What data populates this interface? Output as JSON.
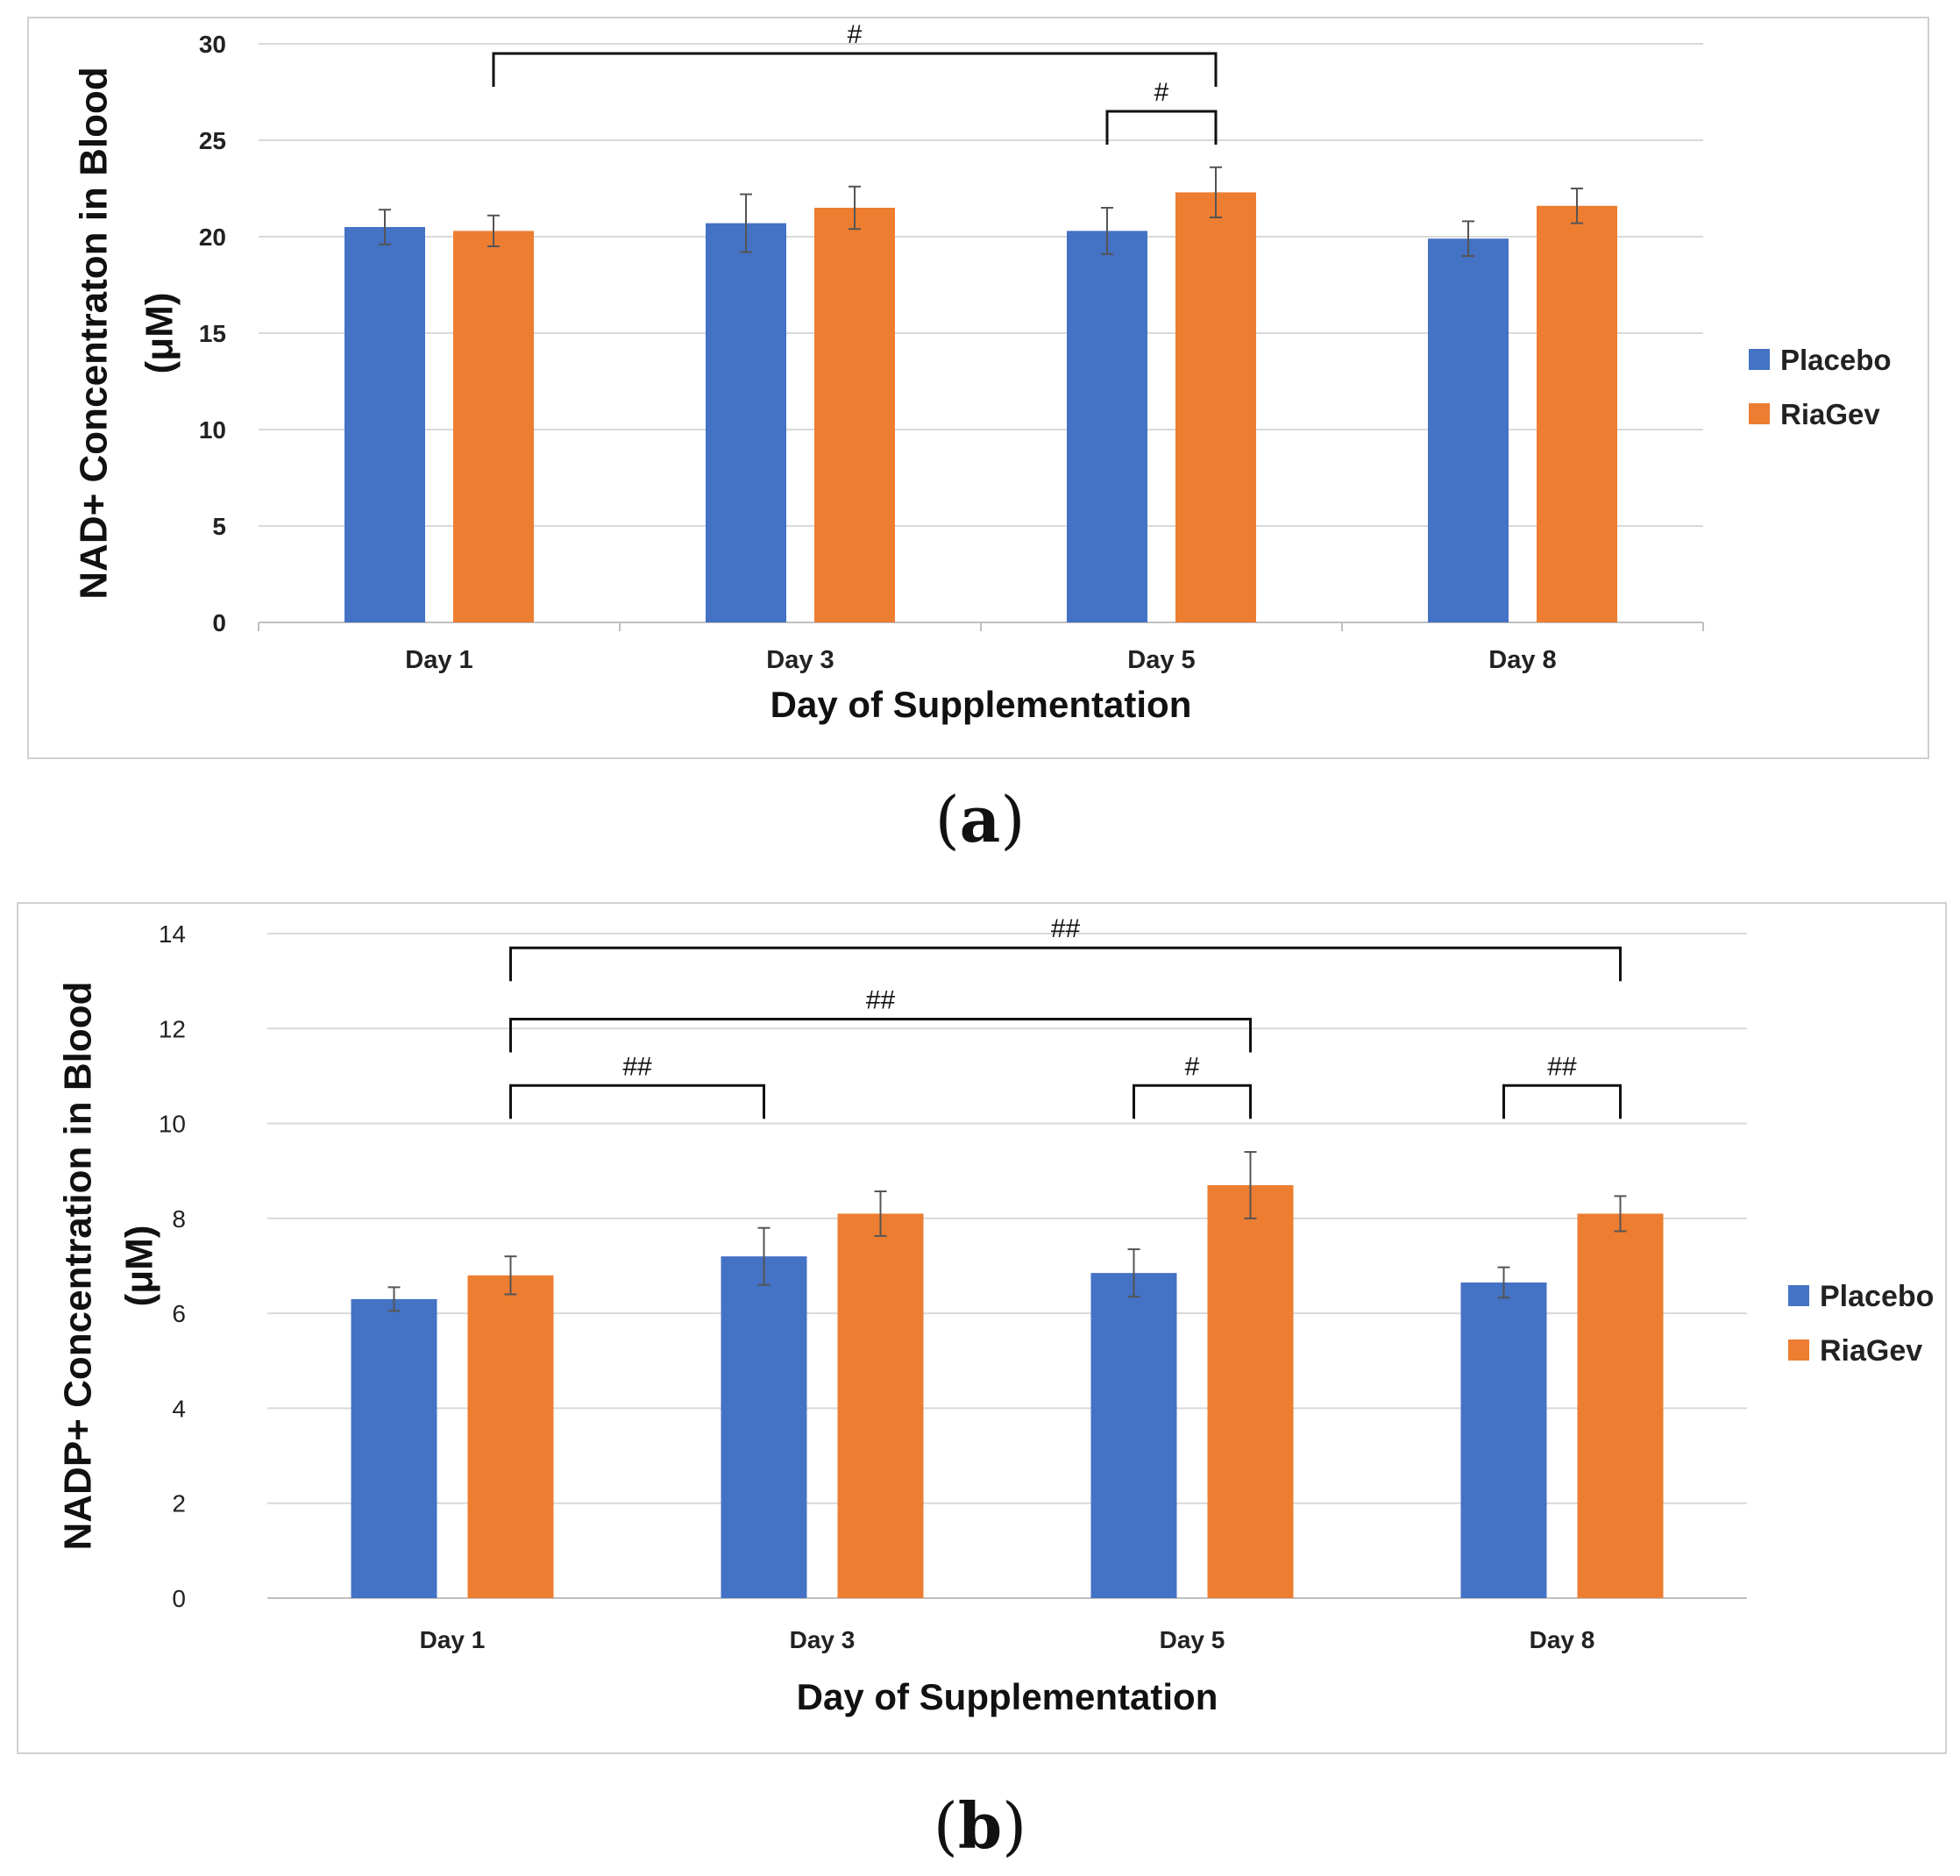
{
  "chart_data": [
    {
      "type": "bar",
      "panel": "a",
      "title": "",
      "xlabel": "Day of Supplementation",
      "ylabel_line1": "NAD+ Concentraton in Blood",
      "ylabel_line2": "(μM)",
      "ylim": [
        0,
        30
      ],
      "yticks": [
        0,
        5,
        10,
        15,
        20,
        25,
        30
      ],
      "grid": true,
      "categories": [
        "Day 1",
        "Day 3",
        "Day 5",
        "Day 8"
      ],
      "series": [
        {
          "name": "Placebo",
          "color": "#4472C4",
          "values": [
            20.5,
            20.7,
            20.3,
            19.9
          ],
          "errors": [
            0.9,
            1.5,
            1.2,
            0.9
          ]
        },
        {
          "name": "RiaGev",
          "color": "#ED7D31",
          "values": [
            20.3,
            21.5,
            22.3,
            21.6
          ],
          "errors": [
            0.8,
            1.1,
            1.3,
            0.9
          ]
        }
      ],
      "legend": "right",
      "annotations": [
        {
          "label": "#",
          "from_category": 0,
          "from_series": 1,
          "to_category": 2,
          "to_series": 1,
          "level": 29.5
        },
        {
          "label": "#",
          "from_category": 2,
          "from_series": 0,
          "to_category": 2,
          "to_series": 1,
          "level": 26.5
        }
      ]
    },
    {
      "type": "bar",
      "panel": "b",
      "title": "",
      "xlabel": "Day of Supplementation",
      "ylabel_line1": "NADP+ Concentration in Blood",
      "ylabel_line2": "(μM)",
      "ylim": [
        0,
        14
      ],
      "yticks": [
        0,
        2,
        4,
        6,
        8,
        10,
        12,
        14
      ],
      "grid": true,
      "categories": [
        "Day 1",
        "Day 3",
        "Day 5",
        "Day 8"
      ],
      "series": [
        {
          "name": "Placebo",
          "color": "#4472C4",
          "values": [
            6.3,
            7.2,
            6.85,
            6.65
          ],
          "errors": [
            0.25,
            0.6,
            0.5,
            0.32
          ]
        },
        {
          "name": "RiaGev",
          "color": "#ED7D31",
          "values": [
            6.8,
            8.1,
            8.7,
            8.1
          ],
          "errors": [
            0.4,
            0.47,
            0.7,
            0.37
          ]
        }
      ],
      "legend": "right",
      "annotations": [
        {
          "label": "##",
          "from_category": 0,
          "from_series": 1,
          "to_category": 3,
          "to_series": 1,
          "level": 13.7
        },
        {
          "label": "##",
          "from_category": 0,
          "from_series": 1,
          "to_category": 2,
          "to_series": 1,
          "level": 12.2
        },
        {
          "label": "##",
          "from_category": 0,
          "from_series": 1,
          "to_category": 1,
          "to_series": 0,
          "level": 10.8
        },
        {
          "label": "#",
          "from_category": 2,
          "from_series": 0,
          "to_category": 2,
          "to_series": 1,
          "level": 10.8
        },
        {
          "label": "##",
          "from_category": 3,
          "from_series": 0,
          "to_category": 3,
          "to_series": 1,
          "level": 10.8
        }
      ]
    }
  ],
  "figure": {
    "label_a_text": "a",
    "label_b_text": "b"
  }
}
